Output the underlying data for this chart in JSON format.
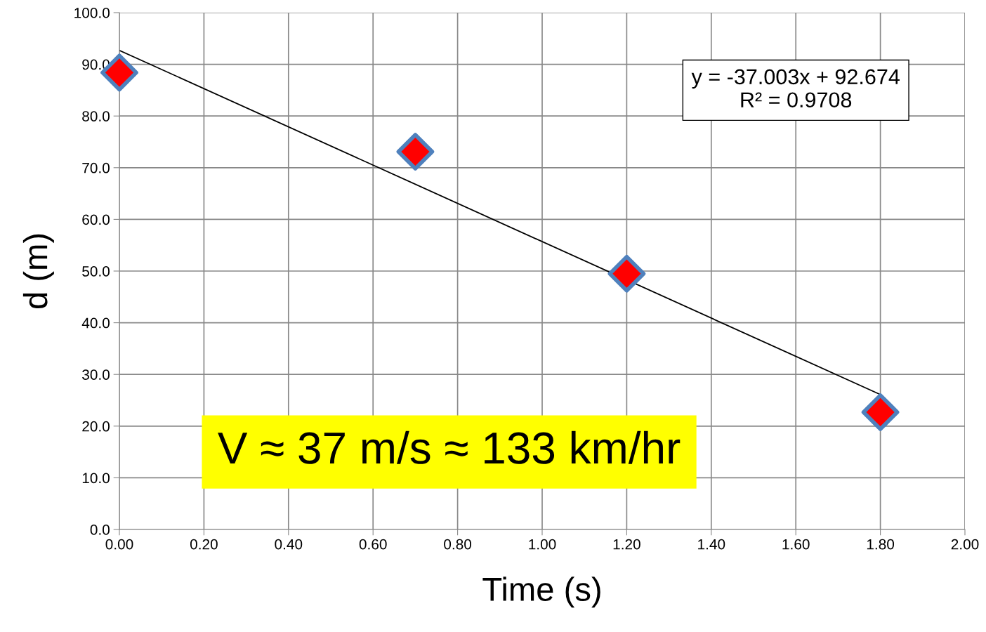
{
  "chart_data": {
    "type": "scatter",
    "xlabel": "Time (s)",
    "ylabel": "d (m)",
    "xlim": [
      0,
      2
    ],
    "ylim": [
      0,
      100
    ],
    "xticks": [
      {
        "value": 0,
        "label": "0.00"
      },
      {
        "value": 0.2,
        "label": "0.20"
      },
      {
        "value": 0.4,
        "label": "0.40"
      },
      {
        "value": 0.6,
        "label": "0.60"
      },
      {
        "value": 0.8,
        "label": "0.80"
      },
      {
        "value": 1.0,
        "label": "1.00"
      },
      {
        "value": 1.2,
        "label": "1.20"
      },
      {
        "value": 1.4,
        "label": "1.40"
      },
      {
        "value": 1.6,
        "label": "1.60"
      },
      {
        "value": 1.8,
        "label": "1.80"
      },
      {
        "value": 2.0,
        "label": "2.00"
      }
    ],
    "yticks": [
      {
        "value": 0,
        "label": "0.0"
      },
      {
        "value": 10,
        "label": "10.0"
      },
      {
        "value": 20,
        "label": "20.0"
      },
      {
        "value": 30,
        "label": "30.0"
      },
      {
        "value": 40,
        "label": "40.0"
      },
      {
        "value": 50,
        "label": "50.0"
      },
      {
        "value": 60,
        "label": "60.0"
      },
      {
        "value": 70,
        "label": "70.0"
      },
      {
        "value": 80,
        "label": "80.0"
      },
      {
        "value": 90,
        "label": "90.0"
      },
      {
        "value": 100,
        "label": "100.0"
      }
    ],
    "series": [
      {
        "color": "#ff0000",
        "x": [
          0,
          0.7,
          1.2,
          1.8
        ],
        "values": [
          88.4,
          73.1,
          49.5,
          22.7
        ],
        "marker": "diamond"
      },
      {
        "type": "line",
        "color": "#000000",
        "x": [
          0,
          1.8
        ],
        "values": [
          92.7,
          26.1
        ],
        "marker": "none",
        "line_style": "solid"
      }
    ],
    "annotations": [
      "y = -37.003x + 92.674\nR² = 0.9708",
      "V ≈ 37 m/s ≈ 133 km/hr"
    ],
    "grid": true
  }
}
